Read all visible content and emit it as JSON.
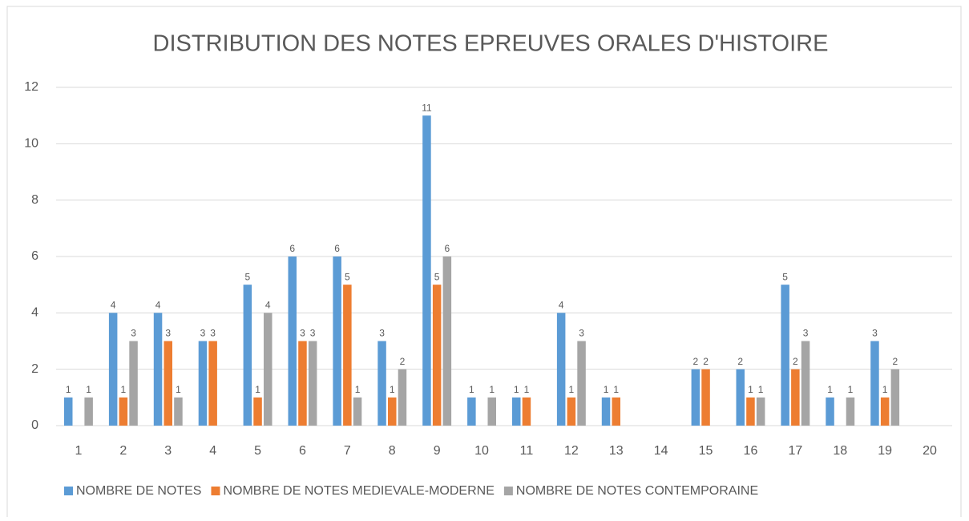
{
  "chart_data": {
    "type": "bar",
    "title": "DISTRIBUTION DES NOTES EPREUVES ORALES D'HISTOIRE",
    "categories": [
      "1",
      "2",
      "3",
      "4",
      "5",
      "6",
      "7",
      "8",
      "9",
      "10",
      "11",
      "12",
      "13",
      "14",
      "15",
      "16",
      "17",
      "18",
      "19",
      "20"
    ],
    "series": [
      {
        "name": "NOMBRE DE NOTES",
        "color": "#5b9bd5",
        "values": [
          1,
          4,
          4,
          3,
          5,
          6,
          6,
          3,
          11,
          1,
          1,
          4,
          1,
          0,
          2,
          2,
          5,
          1,
          3,
          0
        ]
      },
      {
        "name": "NOMBRE DE NOTES MEDIEVALE-MODERNE",
        "color": "#ed7d31",
        "values": [
          0,
          1,
          3,
          3,
          1,
          3,
          5,
          1,
          5,
          0,
          1,
          1,
          1,
          0,
          2,
          1,
          2,
          0,
          1,
          0
        ]
      },
      {
        "name": "NOMBRE DE NOTES CONTEMPORAINE",
        "color": "#a5a5a5",
        "values": [
          1,
          3,
          1,
          0,
          4,
          3,
          1,
          2,
          6,
          1,
          0,
          3,
          0,
          0,
          0,
          1,
          3,
          1,
          2,
          0
        ]
      }
    ],
    "ylim": [
      0,
      12
    ],
    "yticks": [
      0,
      2,
      4,
      6,
      8,
      10,
      12
    ],
    "grid": true,
    "legend": "bottom"
  }
}
